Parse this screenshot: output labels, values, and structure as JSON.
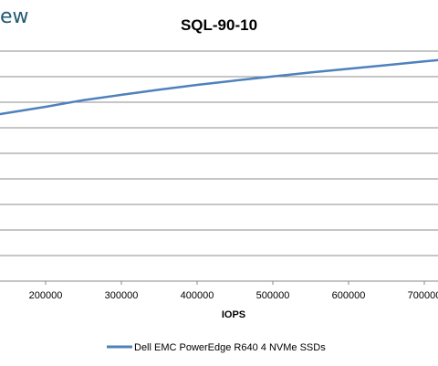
{
  "brand": {
    "text": "ew"
  },
  "chart_data": {
    "type": "line",
    "title": "SQL-90-10",
    "xlabel": "IOPS",
    "ylabel": "",
    "x_ticks": [
      200000,
      300000,
      400000,
      500000,
      600000,
      700000
    ],
    "x_tick_labels": [
      "200000",
      "300000",
      "400000",
      "500000",
      "600000",
      "700000"
    ],
    "grid": true,
    "legend_position": "bottom",
    "series": [
      {
        "name": "Dell EMC PowerEdge R640 4 NVMe SSDs",
        "color": "#4f81bd",
        "x": [
          140000,
          200000,
          250000,
          300000,
          350000,
          400000,
          450000,
          500000,
          550000,
          600000,
          650000,
          700000,
          725000
        ],
        "y": [
          0.726,
          0.758,
          0.787,
          0.81,
          0.832,
          0.853,
          0.872,
          0.89,
          0.907,
          0.923,
          0.939,
          0.955,
          0.963
        ]
      }
    ]
  }
}
